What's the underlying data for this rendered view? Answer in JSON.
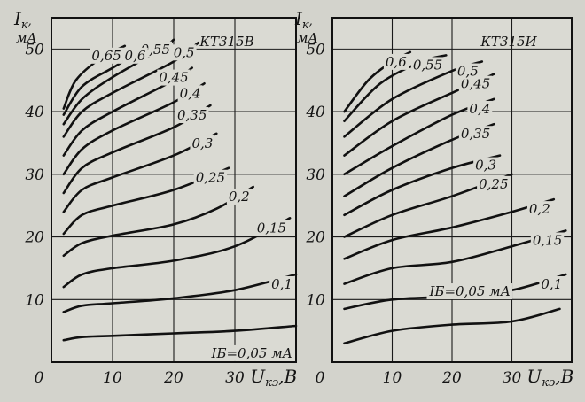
{
  "chart_data": [
    {
      "type": "line",
      "title": "КТ315В",
      "ylabel_symbol": "I",
      "ylabel_sub": "к",
      "ylabel_unit": "мА",
      "xlabel_symbol": "U",
      "xlabel_sub": "кэ",
      "xlabel_unit": "В",
      "xlim": [
        0,
        40
      ],
      "ylim": [
        0,
        55
      ],
      "xticks": [
        "0",
        "10",
        "20",
        "30"
      ],
      "yticks": [
        "10",
        "20",
        "30",
        "40",
        "50"
      ],
      "grid": true,
      "series": [
        {
          "name": "IБ=0,05 мА",
          "points": [
            [
              2,
              3.5
            ],
            [
              5,
              4
            ],
            [
              10,
              4.2
            ],
            [
              20,
              4.6
            ],
            [
              30,
              5
            ],
            [
              40,
              5.8
            ]
          ]
        },
        {
          "name": "0,1",
          "points": [
            [
              2,
              8
            ],
            [
              5,
              9
            ],
            [
              10,
              9.4
            ],
            [
              20,
              10.2
            ],
            [
              30,
              11.5
            ],
            [
              40,
              14
            ]
          ]
        },
        {
          "name": "0,15",
          "points": [
            [
              2,
              12
            ],
            [
              5,
              14
            ],
            [
              10,
              15
            ],
            [
              20,
              16.2
            ],
            [
              30,
              18.5
            ],
            [
              39,
              23
            ]
          ]
        },
        {
          "name": "0,2",
          "points": [
            [
              2,
              17
            ],
            [
              5,
              19
            ],
            [
              10,
              20.2
            ],
            [
              20,
              22
            ],
            [
              27,
              24.5
            ],
            [
              33,
              28
            ]
          ]
        },
        {
          "name": "0,25",
          "points": [
            [
              2,
              20.5
            ],
            [
              5,
              23.5
            ],
            [
              10,
              25
            ],
            [
              20,
              27.5
            ],
            [
              29,
              31
            ]
          ]
        },
        {
          "name": "0,3",
          "points": [
            [
              2,
              24
            ],
            [
              5,
              27.5
            ],
            [
              10,
              29.5
            ],
            [
              20,
              33
            ],
            [
              27,
              36.5
            ]
          ]
        },
        {
          "name": "0,35",
          "points": [
            [
              2,
              27
            ],
            [
              5,
              31
            ],
            [
              10,
              33.5
            ],
            [
              20,
              37.5
            ],
            [
              26,
              41
            ]
          ]
        },
        {
          "name": "0,4",
          "points": [
            [
              2,
              30
            ],
            [
              5,
              34
            ],
            [
              10,
              37
            ],
            [
              20,
              41.5
            ],
            [
              25,
              44.5
            ]
          ]
        },
        {
          "name": "0,45",
          "points": [
            [
              2,
              33
            ],
            [
              5,
              37
            ],
            [
              10,
              40
            ],
            [
              20,
              45
            ],
            [
              23,
              47
            ]
          ]
        },
        {
          "name": "0,5",
          "points": [
            [
              2,
              36
            ],
            [
              5,
              40
            ],
            [
              10,
              43
            ],
            [
              20,
              48
            ],
            [
              24,
              51
            ]
          ]
        },
        {
          "name": "0,55",
          "points": [
            [
              2,
              38
            ],
            [
              5,
              42
            ],
            [
              10,
              45.5
            ],
            [
              18,
              50
            ],
            [
              20,
              51.5
            ]
          ]
        },
        {
          "name": "0,6",
          "points": [
            [
              2,
              39.5
            ],
            [
              5,
              44
            ],
            [
              10,
              47
            ],
            [
              16,
              50.5
            ]
          ]
        },
        {
          "name": "0,65",
          "points": [
            [
              2,
              40.5
            ],
            [
              4,
              45
            ],
            [
              8,
              48.5
            ],
            [
              12,
              50.5
            ]
          ]
        }
      ]
    },
    {
      "type": "line",
      "title": "КТ315И",
      "ylabel_symbol": "I",
      "ylabel_sub": "к",
      "ylabel_unit": "мА",
      "xlabel_symbol": "U",
      "xlabel_sub": "кэ",
      "xlabel_unit": "В",
      "xlim": [
        0,
        40
      ],
      "ylim": [
        0,
        55
      ],
      "xticks": [
        "0",
        "10",
        "20",
        "30"
      ],
      "yticks": [
        "10",
        "20",
        "30",
        "40",
        "50"
      ],
      "grid": true,
      "series": [
        {
          "name": "IБ=0,05 мА",
          "points": [
            [
              2,
              3
            ],
            [
              10,
              5
            ],
            [
              20,
              6
            ],
            [
              30,
              6.5
            ],
            [
              38,
              8.5
            ]
          ]
        },
        {
          "name": "0,1",
          "points": [
            [
              2,
              8.5
            ],
            [
              10,
              10
            ],
            [
              20,
              10.5
            ],
            [
              30,
              11.5
            ],
            [
              39,
              14
            ]
          ]
        },
        {
          "name": "0,15",
          "points": [
            [
              2,
              12.5
            ],
            [
              10,
              15
            ],
            [
              20,
              16
            ],
            [
              30,
              18.5
            ],
            [
              39,
              21
            ]
          ]
        },
        {
          "name": "0,2",
          "points": [
            [
              2,
              16.5
            ],
            [
              10,
              19.5
            ],
            [
              20,
              21.5
            ],
            [
              30,
              24
            ],
            [
              37,
              26
            ]
          ]
        },
        {
          "name": "0,25",
          "points": [
            [
              2,
              20
            ],
            [
              10,
              23.5
            ],
            [
              20,
              26.5
            ],
            [
              30,
              30
            ]
          ]
        },
        {
          "name": "0,3",
          "points": [
            [
              2,
              23.5
            ],
            [
              10,
              27.5
            ],
            [
              20,
              31
            ],
            [
              28,
              33
            ]
          ]
        },
        {
          "name": "0,35",
          "points": [
            [
              2,
              26.5
            ],
            [
              10,
              31
            ],
            [
              20,
              35.5
            ],
            [
              27,
              38
            ]
          ]
        },
        {
          "name": "0,4",
          "points": [
            [
              2,
              30
            ],
            [
              10,
              34.5
            ],
            [
              20,
              39.5
            ],
            [
              27,
              42
            ]
          ]
        },
        {
          "name": "0,45",
          "points": [
            [
              2,
              33
            ],
            [
              10,
              38.5
            ],
            [
              20,
              43
            ],
            [
              27,
              46
            ]
          ]
        },
        {
          "name": "0,5",
          "points": [
            [
              2,
              36
            ],
            [
              10,
              42
            ],
            [
              20,
              46.5
            ],
            [
              25,
              48
            ]
          ]
        },
        {
          "name": "0,55",
          "points": [
            [
              2,
              38.5
            ],
            [
              8,
              44.5
            ],
            [
              15,
              48
            ],
            [
              19,
              49
            ]
          ]
        },
        {
          "name": "0,6",
          "points": [
            [
              2,
              40
            ],
            [
              6,
              45
            ],
            [
              10,
              48
            ],
            [
              13,
              49.5
            ]
          ]
        }
      ]
    }
  ]
}
